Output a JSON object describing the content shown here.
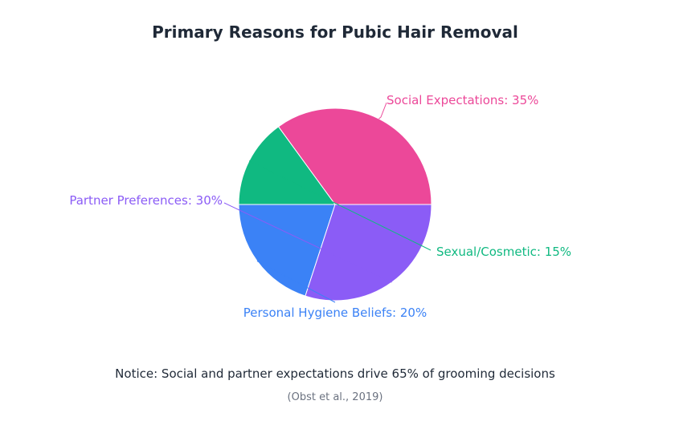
{
  "chart_data": {
    "type": "pie",
    "title": "Primary Reasons for Pubic Hair Removal",
    "slices": [
      {
        "label": "Social Expectations",
        "value": 35,
        "text": "Social Expectations: 35%",
        "color": "#ec4899"
      },
      {
        "label": "Sexual/Cosmetic",
        "value": 15,
        "text": "Sexual/Cosmetic: 15%",
        "color": "#10b981"
      },
      {
        "label": "Personal Hygiene Beliefs",
        "value": 20,
        "text": "Personal Hygiene Beliefs: 20%",
        "color": "#3b82f6"
      },
      {
        "label": "Partner Preferences",
        "value": 30,
        "text": "Partner Preferences: 30%",
        "color": "#8b5cf6"
      }
    ],
    "unit": "%"
  },
  "footer": {
    "notice": "Notice: Social and partner expectations drive 65% of grooming decisions",
    "source": "(Obst et al., 2019)"
  }
}
